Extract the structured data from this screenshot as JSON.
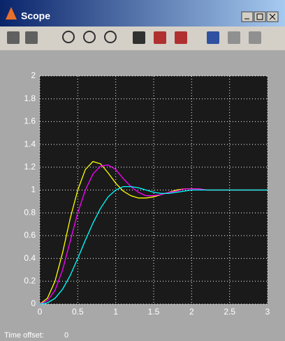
{
  "window": {
    "title": "Scope",
    "time_offset_label": "Time offset:",
    "time_offset": "0"
  },
  "chart_data": {
    "type": "line",
    "x": [
      0,
      0.1,
      0.2,
      0.3,
      0.4,
      0.5,
      0.6,
      0.7,
      0.8,
      0.9,
      1.0,
      1.1,
      1.2,
      1.3,
      1.4,
      1.5,
      1.6,
      1.7,
      1.8,
      1.9,
      2.0,
      2.1,
      2.2,
      2.3,
      2.4,
      2.5,
      2.6,
      2.7,
      2.8,
      2.9,
      3.0
    ],
    "series": [
      {
        "color": "#ffff00",
        "values": [
          0,
          0.05,
          0.2,
          0.45,
          0.75,
          1.0,
          1.18,
          1.25,
          1.23,
          1.15,
          1.06,
          0.99,
          0.95,
          0.93,
          0.93,
          0.94,
          0.96,
          0.98,
          1.0,
          1.01,
          1.01,
          1.01,
          1.0,
          1.0,
          1.0,
          1.0,
          1.0,
          1.0,
          1.0,
          1.0,
          1.0
        ]
      },
      {
        "color": "#ff00ff",
        "values": [
          0,
          0.03,
          0.12,
          0.3,
          0.55,
          0.8,
          1.0,
          1.14,
          1.21,
          1.22,
          1.18,
          1.1,
          1.03,
          0.98,
          0.95,
          0.95,
          0.96,
          0.98,
          0.99,
          1.01,
          1.01,
          1.01,
          1.0,
          1.0,
          1.0,
          1.0,
          1.0,
          1.0,
          1.0,
          1.0,
          1.0
        ]
      },
      {
        "color": "#00ffff",
        "values": [
          0,
          0.01,
          0.05,
          0.13,
          0.25,
          0.4,
          0.56,
          0.71,
          0.84,
          0.94,
          1.0,
          1.03,
          1.03,
          1.02,
          1.0,
          0.98,
          0.97,
          0.97,
          0.98,
          0.99,
          1.0,
          1.0,
          1.0,
          1.0,
          1.0,
          1.0,
          1.0,
          1.0,
          1.0,
          1.0,
          1.0
        ]
      }
    ],
    "xlim": [
      0,
      3
    ],
    "xticks": [
      0,
      0.5,
      1,
      1.5,
      2,
      2.5,
      3
    ],
    "ylim": [
      0,
      2
    ],
    "yticks": [
      0,
      0.2,
      0.4,
      0.6,
      0.8,
      1,
      1.2,
      1.4,
      1.6,
      1.8,
      2
    ],
    "grid": true
  }
}
